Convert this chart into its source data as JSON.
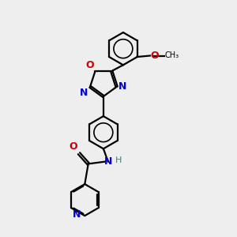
{
  "bg_color": "#eeeeee",
  "bond_color": "#000000",
  "bond_width": 1.6,
  "atom_colors": {
    "N": "#0000cc",
    "O": "#cc0000",
    "C": "#000000",
    "H": "#3a8080"
  },
  "font_size": 8.5,
  "fig_size": [
    3.0,
    3.0
  ],
  "dpi": 100,
  "xlim": [
    0,
    10
  ],
  "ylim": [
    0,
    10
  ]
}
